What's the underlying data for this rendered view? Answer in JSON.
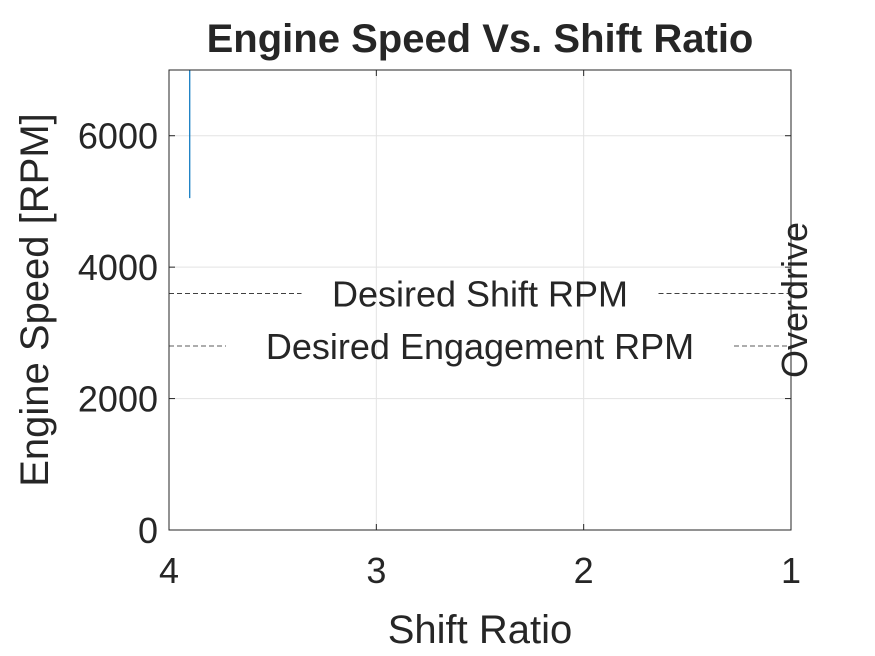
{
  "chart_data": {
    "type": "line",
    "title": "Engine Speed Vs. Shift Ratio",
    "xlabel": "Shift Ratio",
    "ylabel": "Engine Speed [RPM]",
    "xlim": [
      4,
      1
    ],
    "x_reversed": true,
    "ylim": [
      0,
      7000
    ],
    "xticks": [
      4,
      3,
      2,
      1
    ],
    "xtick_labels": [
      "4",
      "3",
      "2",
      "1"
    ],
    "yticks": [
      0,
      2000,
      4000,
      6000
    ],
    "ytick_labels": [
      "0",
      "2000",
      "4000",
      "6000"
    ],
    "grid": true,
    "series": [
      {
        "color": "#0072BD",
        "x": [
          3.9,
          3.9
        ],
        "y": [
          5050,
          7000
        ]
      }
    ],
    "reference_lines": {
      "horizontal": [
        {
          "label": "Desired Shift RPM",
          "y": 3600
        },
        {
          "label": "Desired Engagement RPM",
          "y": 2800
        }
      ],
      "vertical": [
        {
          "label": "Overdrive",
          "x": 1
        }
      ]
    }
  }
}
